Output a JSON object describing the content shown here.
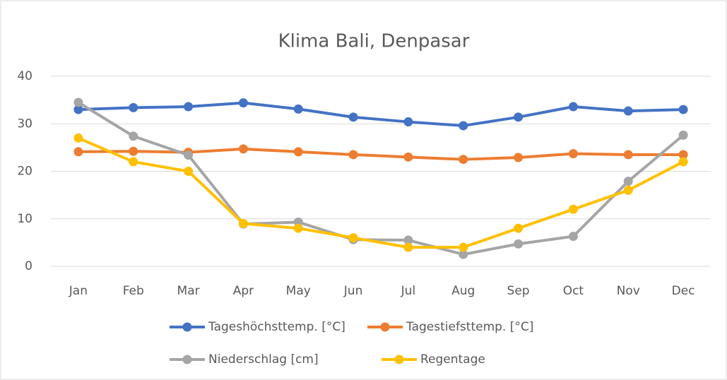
{
  "chart_data": {
    "type": "line",
    "title": "Klima Bali, Denpasar",
    "categories": [
      "Jan",
      "Feb",
      "Mar",
      "Apr",
      "May",
      "Jun",
      "Jul",
      "Aug",
      "Sep",
      "Oct",
      "Nov",
      "Dec"
    ],
    "series": [
      {
        "name": "Tageshöchsttemp. [°C]",
        "color": "#4472c4",
        "values": [
          33,
          33.4,
          33.6,
          34.4,
          33.1,
          31.4,
          30.4,
          29.6,
          31.4,
          33.6,
          32.7,
          33
        ]
      },
      {
        "name": "Tagestiefsttemp. [°C]",
        "color": "#ed7d31",
        "values": [
          24.1,
          24.2,
          24,
          24.7,
          24.1,
          23.5,
          23,
          22.5,
          22.9,
          23.7,
          23.5,
          23.5
        ]
      },
      {
        "name": "Niederschlag [cm]",
        "color": "#a5a5a5",
        "values": [
          34.5,
          27.4,
          23.4,
          8.9,
          9.3,
          5.6,
          5.5,
          2.5,
          4.7,
          6.3,
          17.9,
          27.6
        ]
      },
      {
        "name": "Regentage",
        "color": "#ffc000",
        "values": [
          27,
          22,
          20,
          9,
          8,
          6,
          4,
          4,
          8,
          12,
          16,
          22
        ]
      }
    ],
    "ylim": [
      0,
      40
    ],
    "yticks": [
      0,
      10,
      20,
      30,
      40
    ],
    "grid": true,
    "legend": "bottom"
  }
}
